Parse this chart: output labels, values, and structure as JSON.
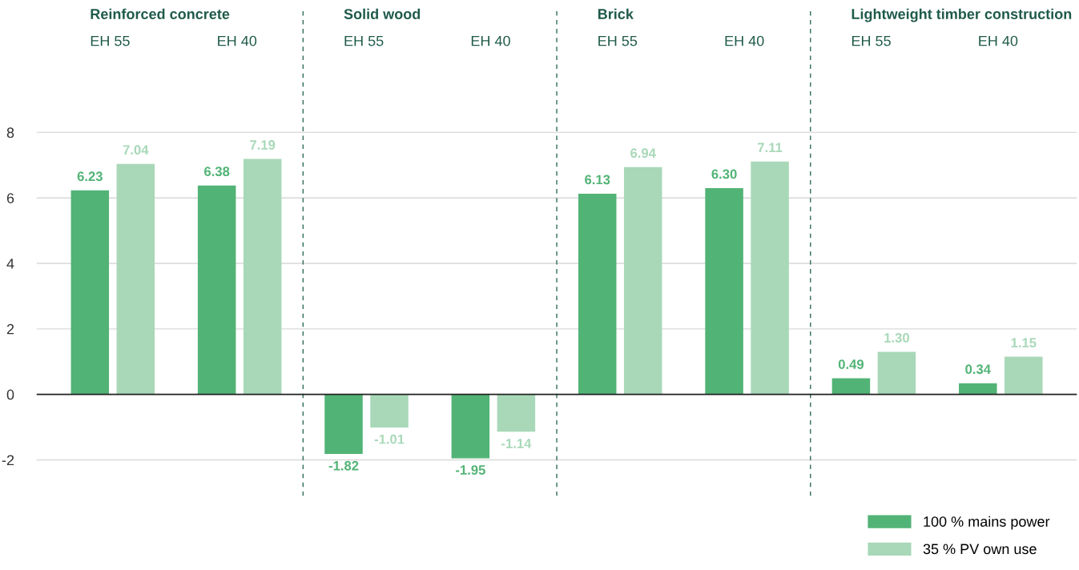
{
  "chart_data": {
    "type": "bar",
    "categories": [
      "EH 55",
      "EH 40",
      "EH 55",
      "EH 40",
      "EH 55",
      "EH 40",
      "EH 55",
      "EH 40"
    ],
    "series": [
      {
        "name": "100 % mains power",
        "color": "#52b376",
        "values": [
          6.23,
          6.38,
          -1.82,
          -1.95,
          6.13,
          6.3,
          0.49,
          0.34
        ],
        "value_labels": [
          "6.23",
          "6.38",
          "-1.82",
          "-1.95",
          "6.13",
          "6.30",
          "0.49",
          "0.34"
        ]
      },
      {
        "name": "35 % PV own use",
        "color": "#a8d8b8",
        "values": [
          7.04,
          7.19,
          -1.01,
          -1.14,
          6.94,
          7.11,
          1.3,
          1.15
        ],
        "value_labels": [
          "7.04",
          "7.19",
          "-1.01",
          "-1.14",
          "6.94",
          "7.11",
          "1.30",
          "1.15"
        ]
      }
    ],
    "annotations": [
      "Reinforced concrete",
      "Solid wood",
      "Brick",
      "Lightweight timber construction"
    ],
    "ylim": [
      -3.1,
      11.8
    ],
    "yticks": [
      -2,
      0,
      2,
      4,
      6,
      8
    ],
    "grid": "y",
    "legend": "bottom right"
  }
}
